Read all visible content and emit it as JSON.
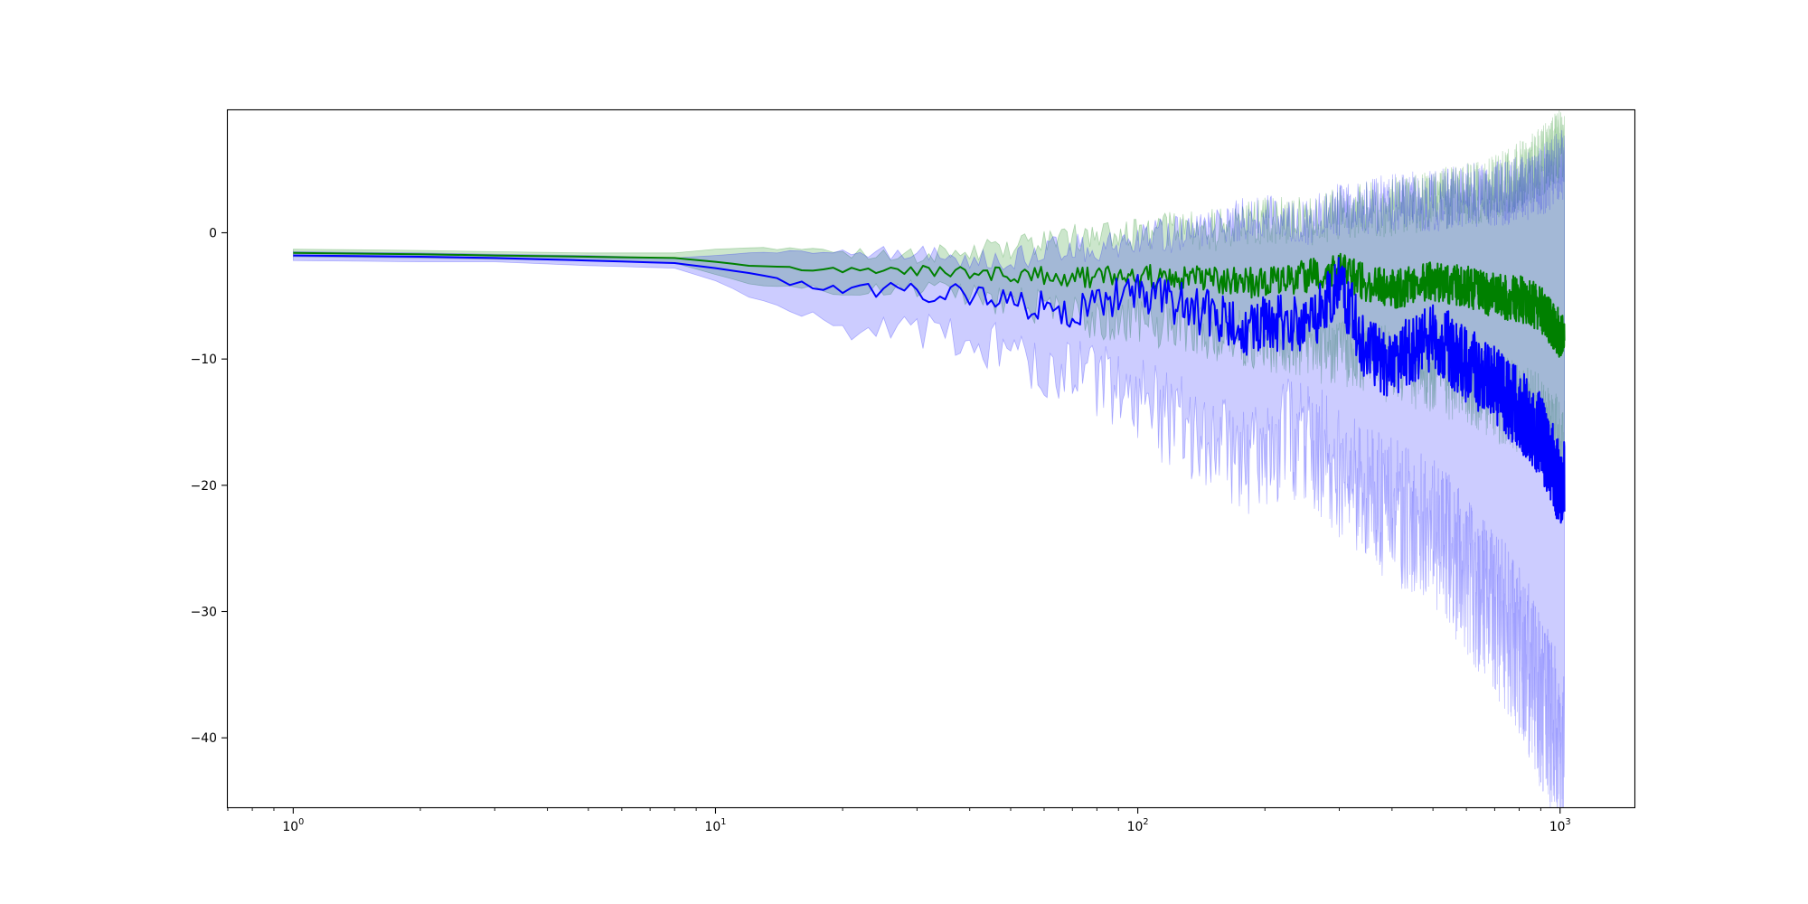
{
  "chart_data": {
    "type": "line",
    "title": "",
    "xlabel": "",
    "ylabel": "",
    "x_scale": "log",
    "xlim": [
      0.7,
      1500
    ],
    "ylim": [
      -45.5,
      9.7
    ],
    "grid": false,
    "legend": "none",
    "x_ticks": [
      {
        "value": 1,
        "base": "10",
        "exp": "0"
      },
      {
        "value": 10,
        "base": "10",
        "exp": "1"
      },
      {
        "value": 100,
        "base": "10",
        "exp": "2"
      },
      {
        "value": 1000,
        "base": "10",
        "exp": "3"
      }
    ],
    "y_ticks": [
      {
        "value": 0,
        "label": "0"
      },
      {
        "value": -10,
        "label": "−10"
      },
      {
        "value": -20,
        "label": "−20"
      },
      {
        "value": -30,
        "label": "−30"
      },
      {
        "value": -40,
        "label": "−40"
      }
    ],
    "series": [
      {
        "color": "#008000",
        "band_color": "#008000",
        "band_opacity": 0.2,
        "x": [
          1,
          2,
          3,
          5,
          8,
          10,
          12,
          15,
          20,
          30,
          40,
          50,
          60,
          70,
          80,
          100,
          120,
          150,
          200,
          250,
          300,
          350,
          400,
          500,
          600,
          700,
          800,
          900,
          1000
        ],
        "mean": [
          -1.6,
          -1.7,
          -1.8,
          -1.9,
          -2.0,
          -2.3,
          -2.6,
          -2.8,
          -3.0,
          -3.0,
          -3.2,
          -3.3,
          -3.4,
          -3.6,
          -3.5,
          -3.4,
          -3.6,
          -3.8,
          -4.0,
          -3.5,
          -3.0,
          -4.0,
          -4.5,
          -3.8,
          -4.2,
          -5.0,
          -5.2,
          -6.0,
          -8.0
        ],
        "upper": [
          -1.3,
          -1.4,
          -1.5,
          -1.6,
          -1.6,
          -1.3,
          -1.2,
          -1.3,
          -1.6,
          -1.8,
          -1.5,
          -1.2,
          -0.8,
          -0.5,
          -0.5,
          -0.3,
          0.3,
          0.2,
          1.0,
          0.8,
          1.5,
          1.8,
          2.0,
          2.5,
          3.0,
          3.5,
          4.5,
          5.5,
          7.0
        ],
        "lower": [
          -1.9,
          -2.0,
          -2.1,
          -2.2,
          -2.4,
          -3.3,
          -4.0,
          -4.3,
          -4.5,
          -4.5,
          -5.0,
          -5.5,
          -6.0,
          -6.5,
          -6.8,
          -7.0,
          -7.5,
          -8.0,
          -8.5,
          -9.0,
          -9.5,
          -10.0,
          -10.5,
          -11.0,
          -12.0,
          -13.0,
          -14.0,
          -15.0,
          -17.0
        ]
      },
      {
        "color": "#0000ff",
        "band_color": "#0000ff",
        "band_opacity": 0.2,
        "x": [
          1,
          2,
          3,
          5,
          8,
          10,
          12,
          15,
          20,
          25,
          30,
          40,
          50,
          60,
          70,
          80,
          100,
          120,
          150,
          180,
          200,
          250,
          300,
          350,
          400,
          500,
          600,
          700,
          800,
          900,
          1000
        ],
        "mean": [
          -1.8,
          -1.9,
          -2.0,
          -2.2,
          -2.4,
          -2.8,
          -3.2,
          -4.0,
          -4.5,
          -4.6,
          -4.6,
          -5.0,
          -5.5,
          -5.8,
          -6.3,
          -5.5,
          -4.5,
          -5.5,
          -6.5,
          -8.0,
          -7.0,
          -7.5,
          -4.0,
          -9.5,
          -10.5,
          -8.0,
          -10.5,
          -12.0,
          -14.0,
          -16.0,
          -20.0
        ],
        "upper": [
          -1.5,
          -1.6,
          -1.7,
          -1.8,
          -2.0,
          -1.8,
          -1.6,
          -1.5,
          -1.5,
          -1.6,
          -1.6,
          -2.0,
          -2.0,
          -1.5,
          -1.2,
          -1.0,
          -0.5,
          -0.3,
          0.5,
          1.2,
          1.5,
          1.0,
          1.8,
          2.0,
          2.5,
          2.5,
          3.0,
          3.0,
          3.5,
          4.0,
          5.5
        ],
        "lower": [
          -2.2,
          -2.3,
          -2.3,
          -2.6,
          -2.8,
          -3.8,
          -5.0,
          -6.5,
          -7.5,
          -7.8,
          -7.5,
          -8.5,
          -9.5,
          -10.5,
          -11.0,
          -11.5,
          -13.0,
          -15.0,
          -16.0,
          -18.0,
          -17.0,
          -16.0,
          -19.0,
          -21.0,
          -22.0,
          -24.0,
          -27.0,
          -30.0,
          -33.0,
          -37.0,
          -41.0
        ]
      }
    ]
  }
}
